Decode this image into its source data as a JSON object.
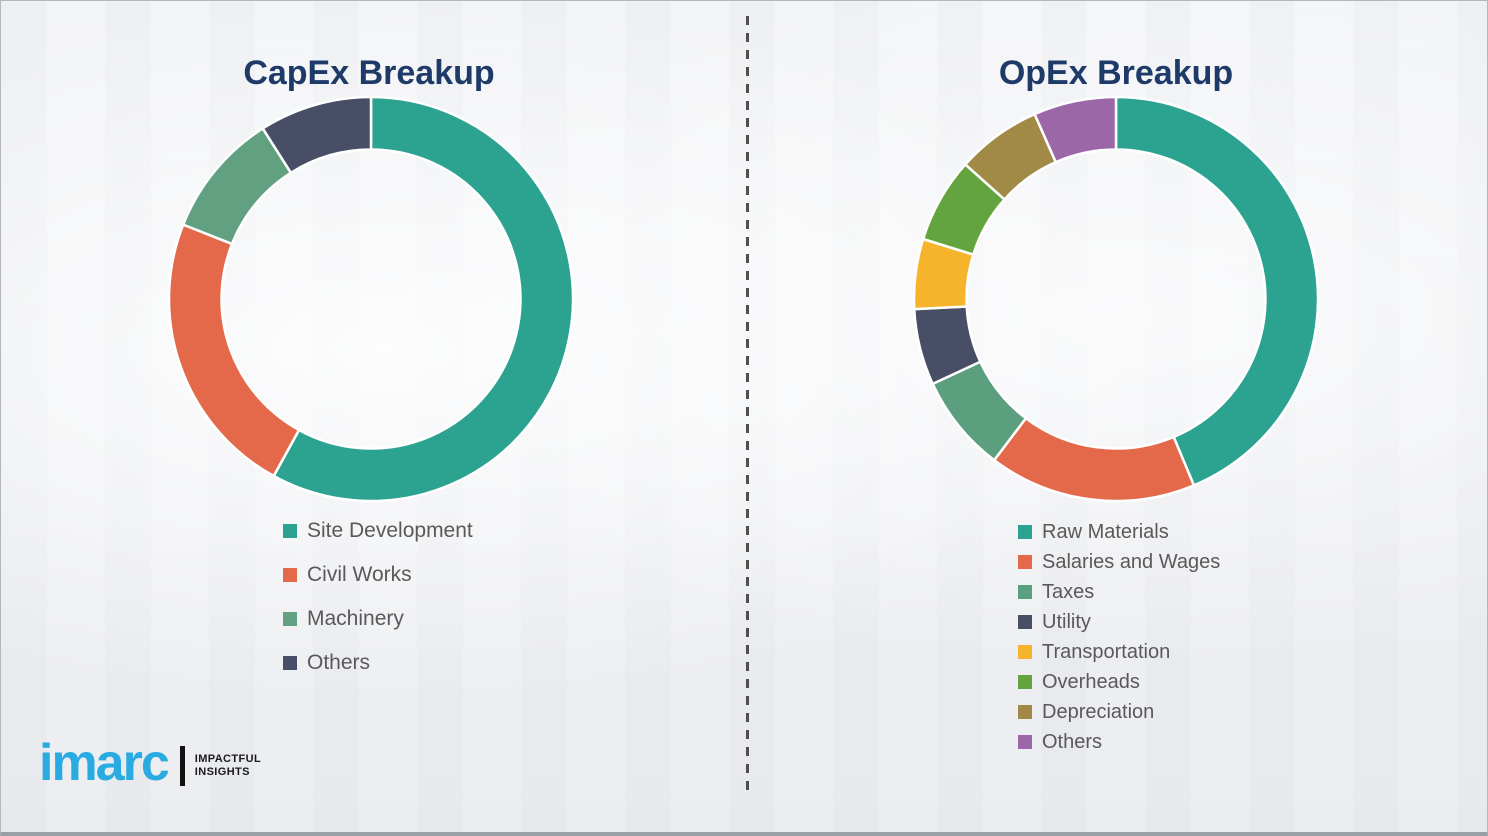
{
  "chart_data": [
    {
      "type": "donut",
      "title": "CapEx Breakup",
      "labels": [
        "Site Development",
        "Civil Works",
        "Machinery",
        "Others"
      ],
      "values": [
        58,
        23,
        10,
        9
      ],
      "colors": [
        "#2ba390",
        "#e4694a",
        "#61a182",
        "#474e66"
      ],
      "units": "percent-estimated",
      "legend_position": "below-left",
      "start_angle_deg": 0,
      "direction": "clockwise",
      "inner_radius_ratio": 0.74
    },
    {
      "type": "donut",
      "title": "OpEx Breakup",
      "labels": [
        "Raw Materials",
        "Salaries and Wages",
        "Taxes",
        "Utility",
        "Transportation",
        "Overheads",
        "Depreciation",
        "Others"
      ],
      "values": [
        43.7,
        16.6,
        7.8,
        6.1,
        5.6,
        6.8,
        6.8,
        6.6
      ],
      "colors": [
        "#2ba390",
        "#e4694a",
        "#5b9f7e",
        "#474e66",
        "#f6b42c",
        "#64a43e",
        "#a18a45",
        "#9c67a6"
      ],
      "units": "percent-estimated",
      "legend_position": "below-left",
      "start_angle_deg": 0,
      "direction": "clockwise",
      "inner_radius_ratio": 0.74
    }
  ],
  "divider": {
    "style": "dashed-vertical",
    "color": "#4f4f4f"
  },
  "logo": {
    "brand": "imarc",
    "tagline_line1": "IMPACTFUL",
    "tagline_line2": "INSIGHTS",
    "brand_color": "#29abe2"
  },
  "theme": {
    "title_color": "#1e3a68",
    "legend_text_color": "#595959",
    "background_color": "#f1f2f4",
    "segment_gap_color": "#ffffff"
  }
}
